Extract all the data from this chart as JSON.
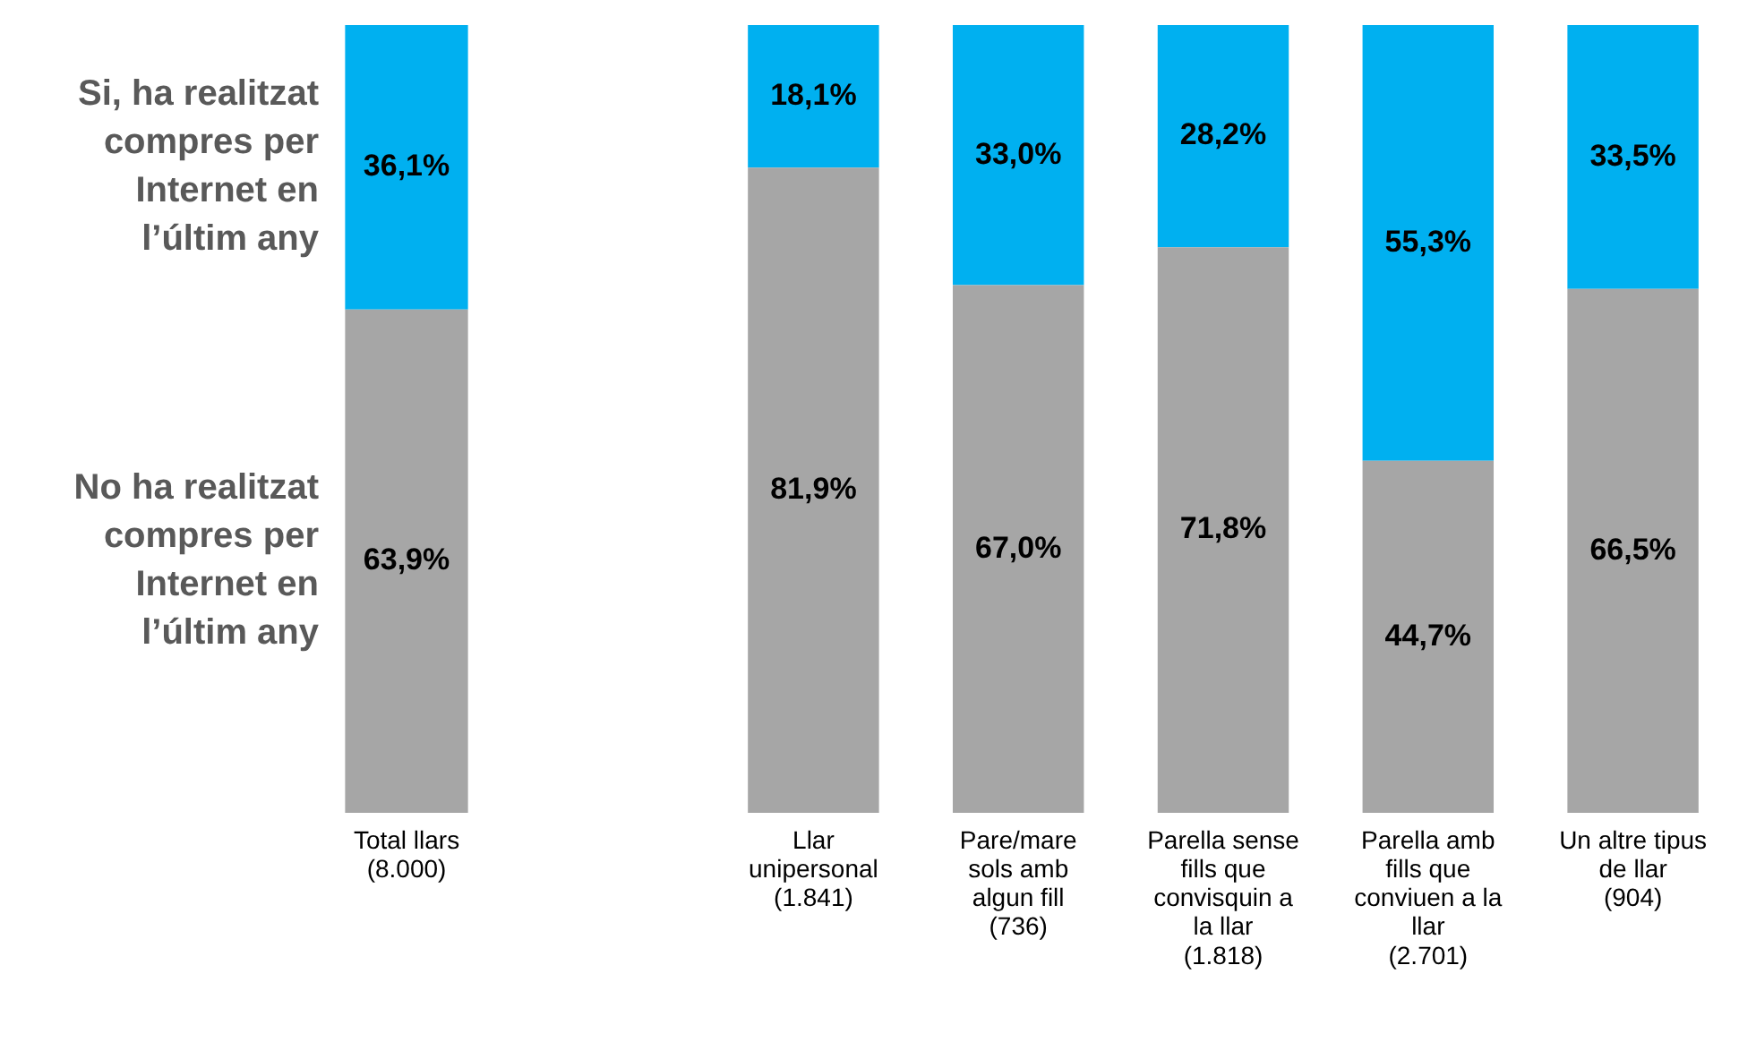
{
  "chart_data": [
    {
      "type": "bar",
      "stacked": true,
      "categories": [
        "Total llars\n(8.000)"
      ],
      "ylim": [
        0,
        100
      ],
      "tick_labels": "x",
      "grid": false,
      "legend": "left",
      "series": [
        {
          "name": "No ha realitzat compres per Internet en l’últim any",
          "color": "#a6a6a6",
          "values": [
            63.9
          ],
          "value_labels": [
            "63,9%"
          ]
        },
        {
          "name": "Si, ha realitzat compres per Internet en l’últim any",
          "color": "#00b0f0",
          "values": [
            36.1
          ],
          "value_labels": [
            "36,1%"
          ]
        }
      ]
    },
    {
      "type": "bar",
      "stacked": true,
      "categories": [
        "Llar\nunipersonal\n(1.841)",
        "Pare/mare\nsols amb\nalgun fill\n(736)",
        "Parella sense\nfills que\nconvisquin a\nla llar\n(1.818)",
        "Parella amb\nfills que\nconviuen a la\nllar\n(2.701)",
        "Un altre tipus\nde llar\n(904)"
      ],
      "ylim": [
        0,
        100
      ],
      "tick_labels": "x",
      "grid": false,
      "series": [
        {
          "color": "#a6a6a6",
          "values": [
            81.9,
            67.0,
            71.8,
            44.7,
            66.5
          ],
          "value_labels": [
            "81,9%",
            "67,0%",
            "71,8%",
            "44,7%",
            "66,5%"
          ]
        },
        {
          "color": "#00b0f0",
          "values": [
            18.1,
            33.0,
            28.2,
            55.3,
            33.5
          ],
          "value_labels": [
            "18,1%",
            "33,0%",
            "28,2%",
            "55,3%",
            "33,5%"
          ]
        }
      ]
    }
  ]
}
